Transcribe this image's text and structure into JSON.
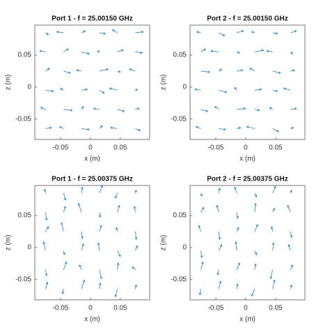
{
  "chart_data": [
    {
      "type": "quiver",
      "title": "Port 1 - f = 25.00150 GHz",
      "xlabel": "x (m)",
      "ylabel": "z (m)",
      "color": "#3a8cc4",
      "xlim": [
        -0.093,
        0.099
      ],
      "ylim": [
        -0.082,
        0.097
      ],
      "xticks": [
        -0.05,
        0,
        0.05
      ],
      "yticks": [
        -0.05,
        0,
        0.05
      ],
      "x": [
        -0.075,
        -0.045,
        -0.015,
        0.015,
        0.045,
        0.075
      ],
      "z": [
        -0.065,
        -0.035,
        -0.005,
        0.025,
        0.055,
        0.085
      ],
      "u": [
        0.6,
        -0.4,
        0.8,
        0.3,
        -0.7,
        0.5,
        -0.5,
        0.9,
        0.2,
        -0.6,
        0.7,
        0.4,
        0.8,
        -0.3,
        0.6,
        0.5,
        -0.8,
        0.2,
        0.4,
        0.7,
        -0.5,
        0.9,
        0.3,
        -0.6,
        -0.6,
        0.5,
        0.8,
        -0.2,
        0.6,
        0.7,
        0.3,
        -0.7,
        0.4,
        0.6,
        -0.5,
        0.8
      ],
      "v": [
        0.1,
        0.2,
        -0.1,
        0.3,
        0.1,
        -0.2,
        0.2,
        -0.1,
        0.3,
        0.1,
        -0.2,
        0.1,
        -0.1,
        0.2,
        0.1,
        -0.3,
        0.2,
        0.1,
        0.3,
        -0.2,
        0.1,
        0.2,
        -0.1,
        0.2,
        0.1,
        0.3,
        -0.2,
        0.1,
        0.2,
        -0.1,
        -0.2,
        0.1,
        0.2,
        -0.1,
        0.3,
        0.1
      ]
    },
    {
      "type": "quiver",
      "title": "Port 2 - f = 25.00150 GHz",
      "xlabel": "x (m)",
      "ylabel": "z (m)",
      "color": "#3a8cc4",
      "xlim": [
        -0.093,
        0.099
      ],
      "ylim": [
        -0.082,
        0.097
      ],
      "xticks": [
        -0.05,
        0,
        0.05
      ],
      "yticks": [
        -0.05,
        0,
        0.05
      ],
      "x": [
        -0.075,
        -0.045,
        -0.015,
        0.015,
        0.045,
        0.075
      ],
      "z": [
        -0.065,
        -0.035,
        -0.005,
        0.025,
        0.055,
        0.085
      ],
      "u": [
        -0.5,
        0.7,
        0.4,
        -0.8,
        0.6,
        0.3,
        0.7,
        -0.4,
        0.9,
        0.5,
        -0.3,
        0.6,
        -0.6,
        0.8,
        -0.2,
        0.7,
        0.5,
        -0.7,
        0.9,
        0.3,
        0.6,
        -0.5,
        0.8,
        0.4,
        0.5,
        -0.8,
        0.3,
        0.9,
        -0.6,
        0.2,
        -0.4,
        0.6,
        0.7,
        -0.3,
        0.5,
        0.6
      ],
      "v": [
        0.2,
        -0.1,
        0.1,
        0.2,
        -0.3,
        0.1,
        -0.2,
        0.3,
        0.1,
        -0.1,
        0.2,
        0.1,
        0.1,
        -0.2,
        0.3,
        0.1,
        -0.1,
        0.2,
        -0.1,
        0.2,
        0.1,
        0.3,
        -0.2,
        0.1,
        0.3,
        0.1,
        -0.1,
        0.2,
        0.1,
        -0.2,
        0.1,
        -0.3,
        0.2,
        0.1,
        -0.1,
        0.2
      ]
    },
    {
      "type": "quiver",
      "title": "Port 1 - f = 25.00375 GHz",
      "xlabel": "x (m)",
      "ylabel": "z (m)",
      "color": "#3a8cc4",
      "xlim": [
        -0.093,
        0.099
      ],
      "ylim": [
        -0.082,
        0.097
      ],
      "xticks": [
        -0.05,
        0,
        0.05
      ],
      "yticks": [
        -0.05,
        0,
        0.05
      ],
      "x": [
        -0.075,
        -0.045,
        -0.015,
        0.015,
        0.045,
        0.075
      ],
      "z": [
        -0.065,
        -0.035,
        -0.005,
        0.025,
        0.055,
        0.085
      ],
      "u": [
        0.2,
        -0.1,
        0.3,
        0.1,
        -0.2,
        0.1,
        0.1,
        0.3,
        -0.2,
        0.2,
        0.1,
        -0.3,
        -0.2,
        0.1,
        0.2,
        -0.1,
        0.3,
        0.2,
        0.3,
        -0.2,
        0.1,
        0.2,
        -0.1,
        0.1,
        0.1,
        0.2,
        -0.3,
        0.1,
        0.2,
        -0.1,
        -0.1,
        0.2,
        0.1,
        0.3,
        -0.2,
        0.1
      ],
      "v": [
        0.7,
        -0.5,
        0.9,
        0.6,
        -0.8,
        0.4,
        -0.6,
        0.8,
        0.5,
        -0.9,
        0.7,
        0.3,
        0.9,
        -0.4,
        0.7,
        0.8,
        -0.6,
        0.5,
        0.5,
        0.9,
        -0.7,
        0.6,
        0.4,
        -0.8,
        -0.8,
        0.6,
        0.9,
        -0.5,
        0.7,
        0.6,
        0.4,
        -0.7,
        0.6,
        0.8,
        -0.5,
        0.3
      ]
    },
    {
      "type": "quiver",
      "title": "Port 2 - f = 25.00375 GHz",
      "xlabel": "x (m)",
      "ylabel": "z (m)",
      "color": "#3a8cc4",
      "xlim": [
        -0.093,
        0.099
      ],
      "ylim": [
        -0.082,
        0.097
      ],
      "xticks": [
        -0.05,
        0,
        0.05
      ],
      "yticks": [
        -0.05,
        0,
        0.05
      ],
      "x": [
        -0.075,
        -0.045,
        -0.015,
        0.015,
        0.045,
        0.075
      ],
      "z": [
        -0.065,
        -0.035,
        -0.005,
        0.025,
        0.055,
        0.085
      ],
      "u": [
        -0.1,
        0.2,
        0.1,
        -0.3,
        0.2,
        0.1,
        0.2,
        -0.1,
        0.3,
        0.1,
        -0.2,
        0.2,
        0.1,
        0.3,
        -0.1,
        0.2,
        0.1,
        -0.2,
        -0.2,
        0.1,
        0.2,
        0.3,
        -0.1,
        0.1,
        0.3,
        -0.2,
        0.1,
        0.1,
        0.2,
        -0.3,
        0.1,
        0.1,
        -0.2,
        0.2,
        0.3,
        0.1
      ],
      "v": [
        -0.6,
        0.8,
        0.5,
        -0.7,
        0.9,
        0.4,
        0.8,
        -0.5,
        0.7,
        0.6,
        -0.9,
        0.5,
        -0.7,
        0.6,
        0.9,
        -0.4,
        0.8,
        0.6,
        0.6,
        -0.8,
        0.4,
        0.7,
        0.5,
        -0.6,
        0.5,
        0.7,
        -0.6,
        0.9,
        0.4,
        0.7,
        -0.3,
        0.5,
        0.6,
        -0.4,
        0.7,
        0.3
      ]
    }
  ]
}
